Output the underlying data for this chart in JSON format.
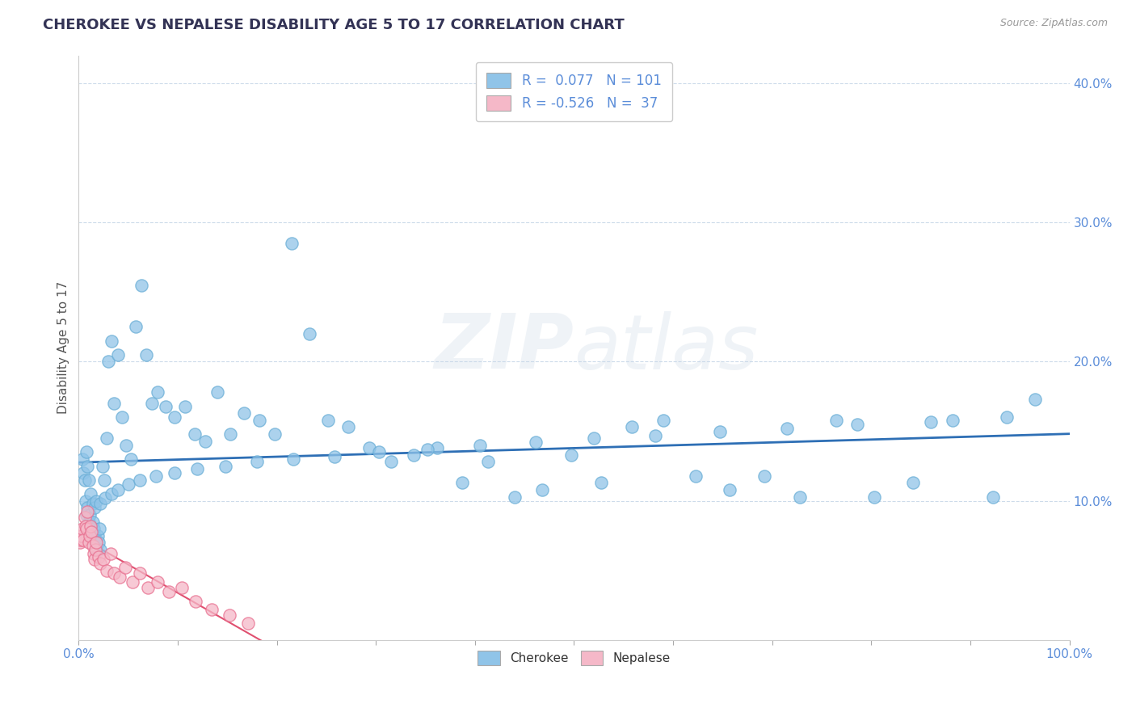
{
  "title": "CHEROKEE VS NEPALESE DISABILITY AGE 5 TO 17 CORRELATION CHART",
  "source_text": "Source: ZipAtlas.com",
  "ylabel": "Disability Age 5 to 17",
  "xlim": [
    0.0,
    1.0
  ],
  "ylim": [
    0.0,
    0.42
  ],
  "xticks": [
    0.0,
    0.1,
    0.2,
    0.3,
    0.4,
    0.5,
    0.6,
    0.7,
    0.8,
    0.9,
    1.0
  ],
  "yticks": [
    0.0,
    0.1,
    0.2,
    0.3,
    0.4
  ],
  "cherokee_color": "#90c4e8",
  "cherokee_edge_color": "#6aaed6",
  "nepalese_color": "#f5b8c8",
  "nepalese_edge_color": "#e87090",
  "cherokee_line_color": "#2e6fb5",
  "nepalese_line_color": "#e05070",
  "cherokee_R": 0.077,
  "cherokee_N": 101,
  "nepalese_R": -0.526,
  "nepalese_N": 37,
  "watermark": "ZIPatlas",
  "title_color": "#333355",
  "axis_label_color": "#555555",
  "tick_color": "#5b8dd9",
  "grid_color": "#c8d8e8",
  "cherokee_x": [
    0.004,
    0.005,
    0.006,
    0.007,
    0.008,
    0.009,
    0.01,
    0.011,
    0.012,
    0.013,
    0.014,
    0.015,
    0.016,
    0.017,
    0.018,
    0.019,
    0.02,
    0.021,
    0.022,
    0.024,
    0.026,
    0.028,
    0.03,
    0.033,
    0.036,
    0.04,
    0.044,
    0.048,
    0.053,
    0.058,
    0.063,
    0.068,
    0.074,
    0.08,
    0.088,
    0.097,
    0.107,
    0.117,
    0.128,
    0.14,
    0.153,
    0.167,
    0.182,
    0.198,
    0.215,
    0.233,
    0.252,
    0.272,
    0.293,
    0.315,
    0.338,
    0.362,
    0.387,
    0.413,
    0.44,
    0.468,
    0.497,
    0.527,
    0.558,
    0.59,
    0.623,
    0.657,
    0.692,
    0.728,
    0.765,
    0.803,
    0.842,
    0.882,
    0.923,
    0.965,
    0.008,
    0.009,
    0.01,
    0.012,
    0.014,
    0.016,
    0.018,
    0.022,
    0.027,
    0.033,
    0.04,
    0.05,
    0.062,
    0.078,
    0.097,
    0.12,
    0.148,
    0.18,
    0.217,
    0.258,
    0.303,
    0.352,
    0.405,
    0.461,
    0.52,
    0.582,
    0.647,
    0.715,
    0.786,
    0.86,
    0.937
  ],
  "cherokee_y": [
    0.13,
    0.12,
    0.115,
    0.1,
    0.09,
    0.095,
    0.085,
    0.09,
    0.08,
    0.075,
    0.085,
    0.08,
    0.075,
    0.07,
    0.065,
    0.075,
    0.07,
    0.08,
    0.065,
    0.125,
    0.115,
    0.145,
    0.2,
    0.215,
    0.17,
    0.205,
    0.16,
    0.14,
    0.13,
    0.225,
    0.255,
    0.205,
    0.17,
    0.178,
    0.168,
    0.16,
    0.168,
    0.148,
    0.143,
    0.178,
    0.148,
    0.163,
    0.158,
    0.148,
    0.285,
    0.22,
    0.158,
    0.153,
    0.138,
    0.128,
    0.133,
    0.138,
    0.113,
    0.128,
    0.103,
    0.108,
    0.133,
    0.113,
    0.153,
    0.158,
    0.118,
    0.108,
    0.118,
    0.103,
    0.158,
    0.103,
    0.113,
    0.158,
    0.103,
    0.173,
    0.135,
    0.125,
    0.115,
    0.105,
    0.098,
    0.095,
    0.1,
    0.098,
    0.102,
    0.105,
    0.108,
    0.112,
    0.115,
    0.118,
    0.12,
    0.123,
    0.125,
    0.128,
    0.13,
    0.132,
    0.135,
    0.137,
    0.14,
    0.142,
    0.145,
    0.147,
    0.15,
    0.152,
    0.155,
    0.157,
    0.16
  ],
  "nepalese_x": [
    0.0,
    0.001,
    0.002,
    0.003,
    0.004,
    0.005,
    0.006,
    0.007,
    0.008,
    0.009,
    0.01,
    0.011,
    0.012,
    0.013,
    0.014,
    0.015,
    0.016,
    0.017,
    0.018,
    0.02,
    0.022,
    0.025,
    0.028,
    0.032,
    0.036,
    0.041,
    0.047,
    0.054,
    0.062,
    0.07,
    0.08,
    0.091,
    0.104,
    0.118,
    0.134,
    0.152,
    0.171
  ],
  "nepalese_y": [
    0.075,
    0.07,
    0.072,
    0.075,
    0.08,
    0.072,
    0.088,
    0.082,
    0.08,
    0.092,
    0.07,
    0.075,
    0.082,
    0.078,
    0.068,
    0.062,
    0.058,
    0.065,
    0.07,
    0.06,
    0.055,
    0.058,
    0.05,
    0.062,
    0.048,
    0.045,
    0.052,
    0.042,
    0.048,
    0.038,
    0.042,
    0.035,
    0.038,
    0.028,
    0.022,
    0.018,
    0.012
  ]
}
